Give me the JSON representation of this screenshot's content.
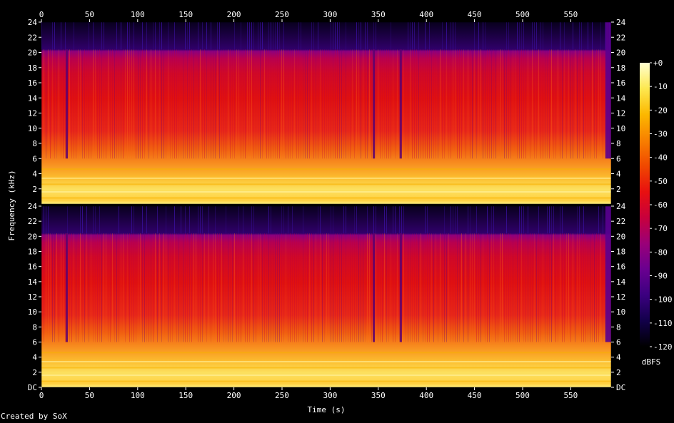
{
  "chart_data": {
    "type": "heatmap",
    "xlabel": "Time (s)",
    "ylabel": "Frequency (kHz)",
    "x_ticks": [
      0,
      50,
      100,
      150,
      200,
      250,
      300,
      350,
      400,
      450,
      500,
      550
    ],
    "xlim": [
      0,
      592
    ],
    "ylim_khz": [
      0,
      24
    ],
    "channels": [
      {
        "y_tick_labels": [
          "2",
          "4",
          "6",
          "8",
          "10",
          "12",
          "14",
          "16",
          "18",
          "20",
          "22",
          "24"
        ]
      },
      {
        "y_tick_labels": [
          "DC",
          "2",
          "4",
          "6",
          "8",
          "10",
          "12",
          "14",
          "16",
          "18",
          "20",
          "22",
          "24"
        ]
      }
    ],
    "colorbar": {
      "unit": "dBFS",
      "range": [
        -120,
        0
      ],
      "tick_labels": [
        "+0",
        "-10",
        "-20",
        "-30",
        "-40",
        "-50",
        "-60",
        "-70",
        "-80",
        "-90",
        "-100",
        "-110",
        "-120"
      ],
      "colors": [
        "#000000",
        "#12004a",
        "#3b0080",
        "#6a0090",
        "#9a0078",
        "#c8003c",
        "#e81010",
        "#f04800",
        "#f88000",
        "#fcb800",
        "#fde850",
        "#ffffd0"
      ]
    },
    "content_cutoff_khz": 20.4,
    "dropout_times_s": [
      26,
      345,
      373
    ],
    "end_of_content_s": 586
  },
  "credit": "Created by SoX"
}
